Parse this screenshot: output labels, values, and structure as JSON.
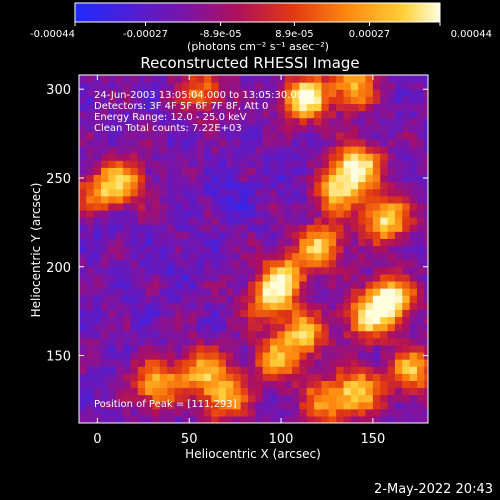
{
  "chart_data": {
    "type": "heatmap",
    "title": "Reconstructed RHESSI Image",
    "xlabel": "Heliocentric X (arcsec)",
    "ylabel": "Heliocentric Y (arcsec)",
    "xlim": [
      -10,
      180
    ],
    "ylim": [
      112,
      308
    ],
    "xticks": [
      "0",
      "50",
      "100",
      "150"
    ],
    "xtick_values": [
      0,
      50,
      100,
      150
    ],
    "yticks": [
      "150",
      "200",
      "250",
      "300"
    ],
    "ytick_values": [
      150,
      200,
      250,
      300
    ],
    "colorbar": {
      "range": [
        -0.00044,
        0.00044
      ],
      "tick_labels": [
        "-0.00044",
        "-0.00027",
        "-8.9e-05",
        "8.9e-05",
        "0.00027",
        "0.00044"
      ],
      "label": "(photons cm⁻² s⁻¹ asec⁻²)",
      "colors": [
        "#1f2bff",
        "#4d1fd6",
        "#7a14a8",
        "#b0105a",
        "#e23a10",
        "#ff8a10",
        "#ffd03a",
        "#ffffe0"
      ]
    },
    "annotations": [
      "24-Jun-2003 13:05:04.000 to 13:05:30.000",
      "Detectors: 3F 4F 5F 6F 7F 8F, Att 0",
      "Energy Range: 12.0 - 25.0 keV",
      "Clean     Total counts: 7.22E+03"
    ],
    "peak_label": "Position of Peak = [111,293]",
    "peak": [
      111,
      293
    ],
    "hot_spots": [
      {
        "x": 140,
        "y": 255,
        "v": 0.0004
      },
      {
        "x": 128,
        "y": 242,
        "v": 0.00032
      },
      {
        "x": 155,
        "y": 225,
        "v": 0.00036
      },
      {
        "x": 120,
        "y": 210,
        "v": 0.0003
      },
      {
        "x": 158,
        "y": 180,
        "v": 0.00042
      },
      {
        "x": 145,
        "y": 170,
        "v": 0.0003
      },
      {
        "x": 100,
        "y": 193,
        "v": 0.00026
      },
      {
        "x": 92,
        "y": 180,
        "v": 0.00024
      },
      {
        "x": 110,
        "y": 160,
        "v": 0.00028
      },
      {
        "x": 95,
        "y": 145,
        "v": 0.00022
      },
      {
        "x": 30,
        "y": 132,
        "v": 0.0003
      },
      {
        "x": 55,
        "y": 140,
        "v": 0.00024
      },
      {
        "x": 68,
        "y": 125,
        "v": 0.00026
      },
      {
        "x": 12,
        "y": 246,
        "v": 0.00026
      },
      {
        "x": -2,
        "y": 238,
        "v": 0.00022
      },
      {
        "x": 111,
        "y": 293,
        "v": 0.00044
      },
      {
        "x": 138,
        "y": 300,
        "v": 0.0003
      },
      {
        "x": 55,
        "y": 298,
        "v": 0.00016
      },
      {
        "x": 140,
        "y": 128,
        "v": 0.0003
      },
      {
        "x": 122,
        "y": 122,
        "v": 0.0002
      },
      {
        "x": 170,
        "y": 140,
        "v": 0.00026
      }
    ],
    "cold_spots": [
      {
        "x": 0,
        "y": 228,
        "v": -0.00036
      },
      {
        "x": 70,
        "y": 240,
        "v": -0.0003
      },
      {
        "x": 112,
        "y": 248,
        "v": -0.0003
      },
      {
        "x": 45,
        "y": 200,
        "v": -0.00026
      },
      {
        "x": 20,
        "y": 182,
        "v": -0.00022
      },
      {
        "x": 150,
        "y": 298,
        "v": -0.00024
      },
      {
        "x": 80,
        "y": 170,
        "v": -0.00018
      }
    ]
  },
  "footer": {
    "timestamp": "2-May-2022 20:43"
  }
}
